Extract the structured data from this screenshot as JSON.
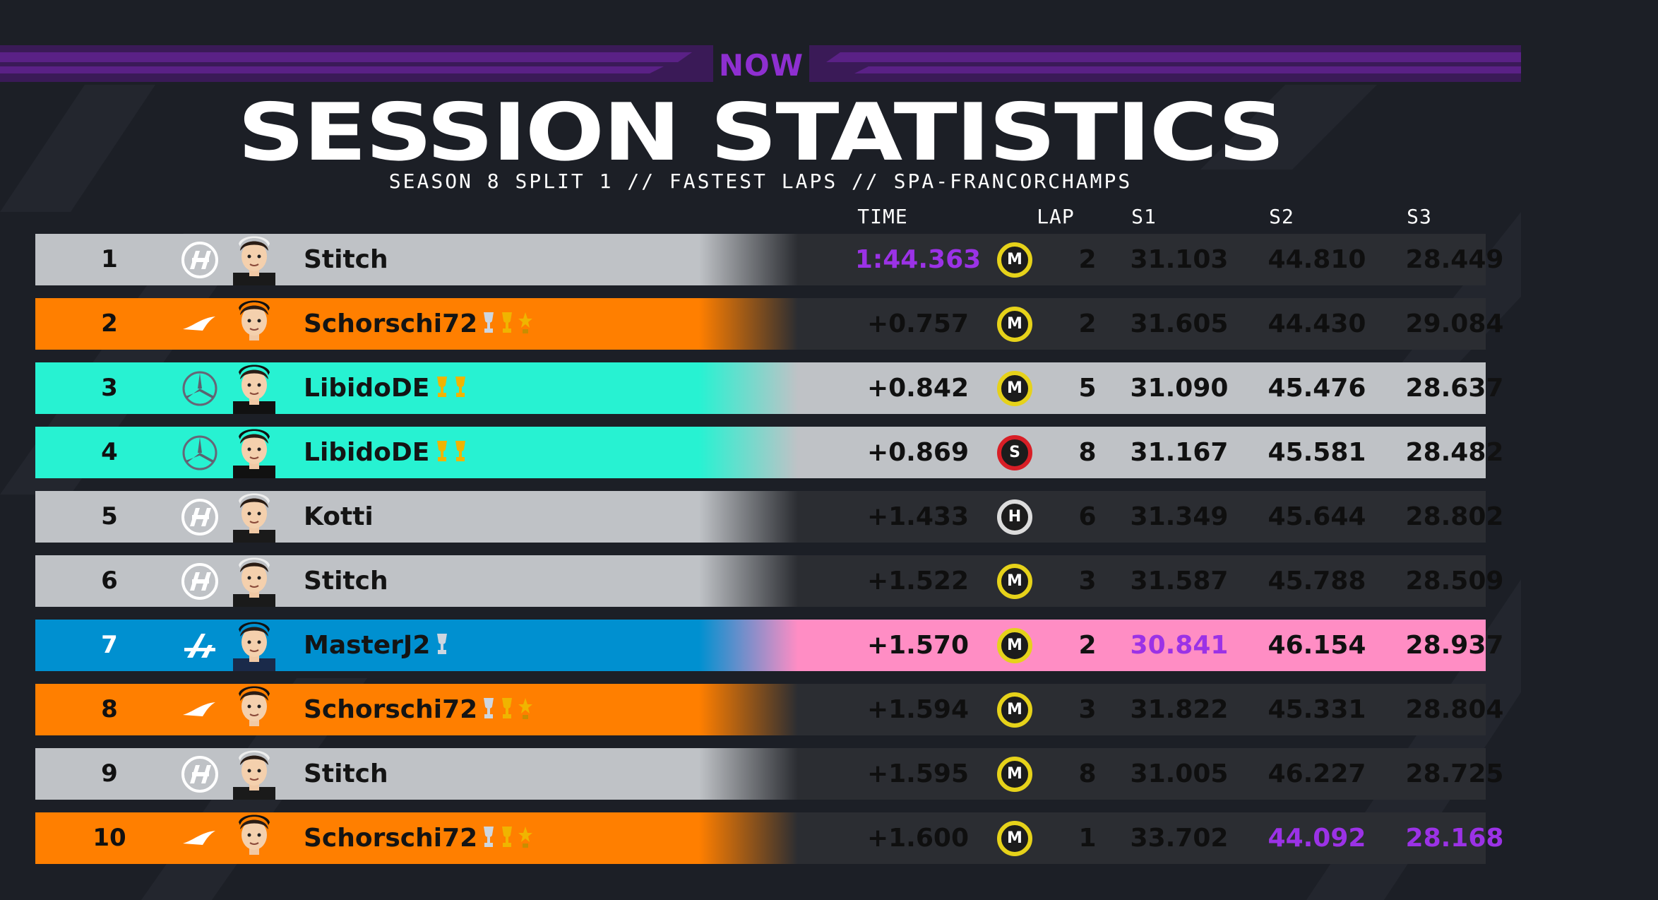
{
  "header": {
    "logo_text": "NOW",
    "title": "SESSION STATISTICS",
    "subtitle": "SEASON 8 SPLIT 1 // FASTEST LAPS // SPA-FRANCORCHAMPS"
  },
  "columns": {
    "time": "TIME",
    "lap": "LAP",
    "s1": "S1",
    "s2": "S2",
    "s3": "S3"
  },
  "colors": {
    "background": "#1c1f26",
    "purple_best": "#9b32e6",
    "haas": "#bfc2c6",
    "mclaren": "#ff7f00",
    "mercedes": "#27f2d2",
    "alpine_blue": "#0090d0",
    "alpine_pink": "#ff8dc4",
    "medium_tyre": "#e6d21a",
    "soft_tyre": "#d81e26",
    "hard_tyre": "#dcdcdc"
  },
  "rows": [
    {
      "pos": "1",
      "team": "haas-icon",
      "driver": "Stitch",
      "trophies": [],
      "time": "1:44.363",
      "tyre": "M",
      "lap": "2",
      "s1": "31.103",
      "s2": "44.810",
      "s3": "28.449",
      "time_best": true
    },
    {
      "pos": "2",
      "team": "mclaren-icon",
      "driver": "Schorschi72",
      "trophies": [
        "silver",
        "gold",
        "star"
      ],
      "time": "+0.757",
      "tyre": "M",
      "lap": "2",
      "s1": "31.605",
      "s2": "44.430",
      "s3": "29.084"
    },
    {
      "pos": "3",
      "team": "mercedes-icon",
      "driver": "LibidoDE",
      "trophies": [
        "gold",
        "gold"
      ],
      "time": "+0.842",
      "tyre": "M",
      "lap": "5",
      "s1": "31.090",
      "s2": "45.476",
      "s3": "28.637"
    },
    {
      "pos": "4",
      "team": "mercedes-icon",
      "driver": "LibidoDE",
      "trophies": [
        "gold",
        "gold"
      ],
      "time": "+0.869",
      "tyre": "S",
      "lap": "8",
      "s1": "31.167",
      "s2": "45.581",
      "s3": "28.482"
    },
    {
      "pos": "5",
      "team": "haas-icon",
      "driver": "Kotti",
      "trophies": [],
      "time": "+1.433",
      "tyre": "H",
      "lap": "6",
      "s1": "31.349",
      "s2": "45.644",
      "s3": "28.802"
    },
    {
      "pos": "6",
      "team": "haas-icon",
      "driver": "Stitch",
      "trophies": [],
      "time": "+1.522",
      "tyre": "M",
      "lap": "3",
      "s1": "31.587",
      "s2": "45.788",
      "s3": "28.509"
    },
    {
      "pos": "7",
      "team": "alpine-icon",
      "driver": "MasterJ2",
      "trophies": [
        "silver"
      ],
      "time": "+1.570",
      "tyre": "M",
      "lap": "2",
      "s1": "30.841",
      "s2": "46.154",
      "s3": "28.937",
      "s1_best": true
    },
    {
      "pos": "8",
      "team": "mclaren-icon",
      "driver": "Schorschi72",
      "trophies": [
        "silver",
        "gold",
        "star"
      ],
      "time": "+1.594",
      "tyre": "M",
      "lap": "3",
      "s1": "31.822",
      "s2": "45.331",
      "s3": "28.804"
    },
    {
      "pos": "9",
      "team": "haas-icon",
      "driver": "Stitch",
      "trophies": [],
      "time": "+1.595",
      "tyre": "M",
      "lap": "8",
      "s1": "31.005",
      "s2": "46.227",
      "s3": "28.725"
    },
    {
      "pos": "10",
      "team": "mclaren-icon",
      "driver": "Schorschi72",
      "trophies": [
        "silver",
        "gold",
        "star"
      ],
      "time": "+1.600",
      "tyre": "M",
      "lap": "1",
      "s1": "33.702",
      "s2": "44.092",
      "s3": "28.168",
      "s2_best": true,
      "s3_best": true
    }
  ]
}
